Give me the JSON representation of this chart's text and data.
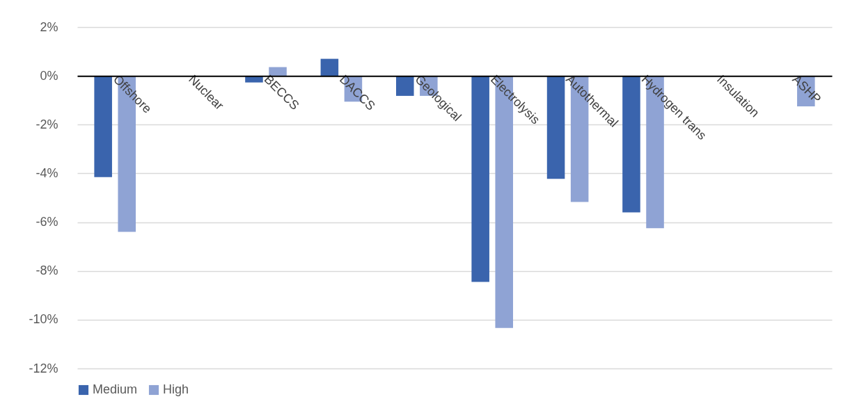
{
  "chart_data": {
    "type": "bar",
    "categories": [
      "Offshore",
      "Nuclear",
      "BECCS",
      "DACCS",
      "Geological",
      "Electrolysis",
      "Autothermal",
      "Hydrogen trans",
      "Insulation",
      "ASHP"
    ],
    "series": [
      {
        "name": "Medium",
        "color": "#3a64ad",
        "values": [
          -4.15,
          0,
          -0.27,
          0.7,
          -0.82,
          -8.45,
          -4.22,
          -5.6,
          0,
          null
        ]
      },
      {
        "name": "High",
        "color": "#8fa3d4",
        "values": [
          -6.4,
          0,
          0.36,
          -1.06,
          -0.82,
          -10.34,
          -5.17,
          -6.25,
          0,
          -1.25
        ]
      }
    ],
    "ylim": [
      -12,
      2
    ],
    "yticks": [
      {
        "value": -12,
        "label": "-12%"
      },
      {
        "value": -10,
        "label": "-10%"
      },
      {
        "value": -8,
        "label": "-8%"
      },
      {
        "value": -6,
        "label": "-6%"
      },
      {
        "value": -4,
        "label": "-4%"
      },
      {
        "value": -2,
        "label": "-2%"
      },
      {
        "value": 0,
        "label": "0%"
      },
      {
        "value": 2,
        "label": "2%"
      }
    ],
    "grid": "y",
    "legend": "bottom"
  }
}
